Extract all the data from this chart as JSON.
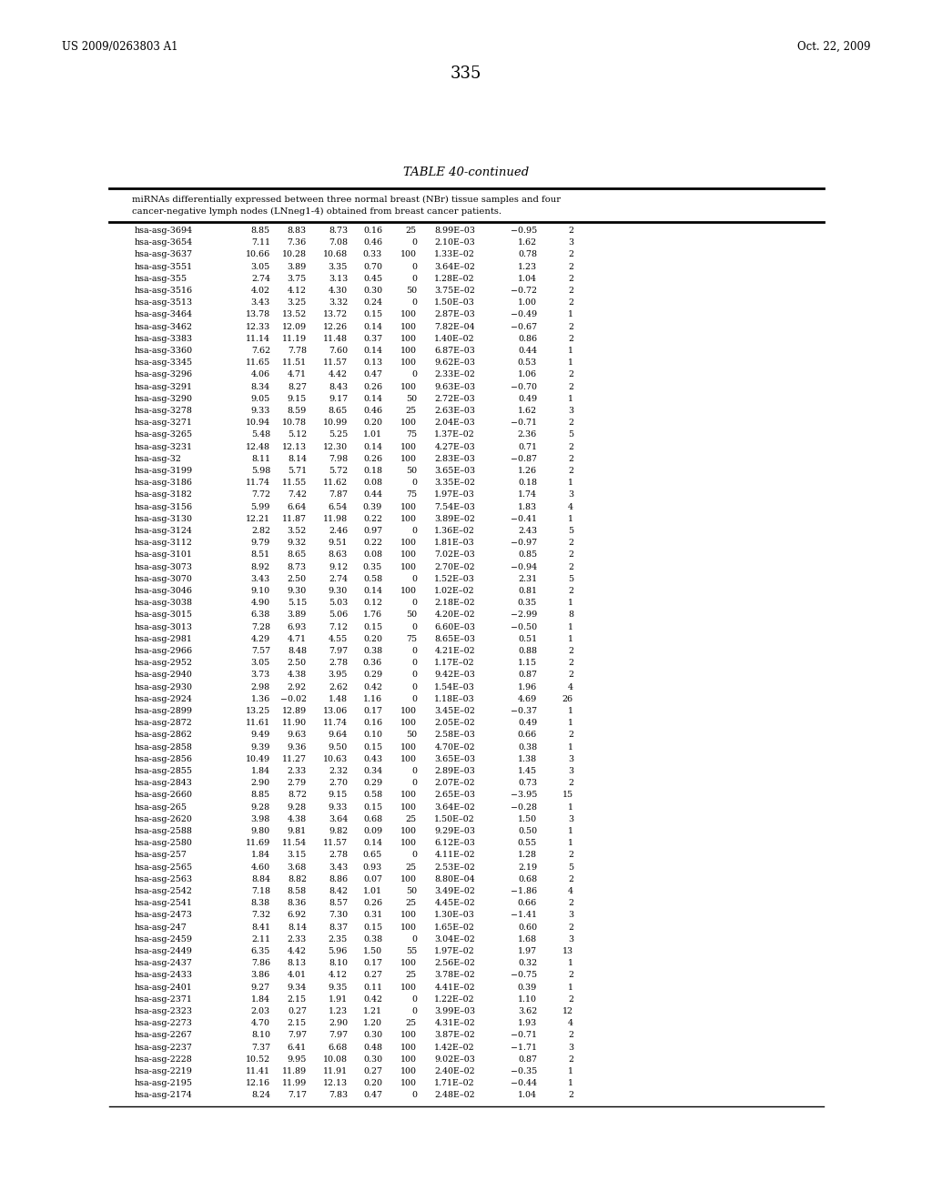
{
  "header_left": "US 2009/0263803 A1",
  "header_right": "Oct. 22, 2009",
  "page_number": "335",
  "table_title": "TABLE 40-continued",
  "table_description_line1": "miRNAs differentially expressed between three normal breast (NBr) tissue samples and four",
  "table_description_line2": "cancer-negative lymph nodes (LNneg1-4) obtained from breast cancer patients.",
  "rows": [
    [
      "hsa-asg-3694",
      "8.85",
      "8.83",
      "8.73",
      "0.16",
      "25",
      "8.99E–03",
      "−0.95",
      "2"
    ],
    [
      "hsa-asg-3654",
      "7.11",
      "7.36",
      "7.08",
      "0.46",
      "0",
      "2.10E–03",
      "1.62",
      "3"
    ],
    [
      "hsa-asg-3637",
      "10.66",
      "10.28",
      "10.68",
      "0.33",
      "100",
      "1.33E–02",
      "0.78",
      "2"
    ],
    [
      "hsa-asg-3551",
      "3.05",
      "3.89",
      "3.35",
      "0.70",
      "0",
      "3.64E–02",
      "1.23",
      "2"
    ],
    [
      "hsa-asg-355",
      "2.74",
      "3.75",
      "3.13",
      "0.45",
      "0",
      "1.28E–02",
      "1.04",
      "2"
    ],
    [
      "hsa-asg-3516",
      "4.02",
      "4.12",
      "4.30",
      "0.30",
      "50",
      "3.75E–02",
      "−0.72",
      "2"
    ],
    [
      "hsa-asg-3513",
      "3.43",
      "3.25",
      "3.32",
      "0.24",
      "0",
      "1.50E–03",
      "1.00",
      "2"
    ],
    [
      "hsa-asg-3464",
      "13.78",
      "13.52",
      "13.72",
      "0.15",
      "100",
      "2.87E–03",
      "−0.49",
      "1"
    ],
    [
      "hsa-asg-3462",
      "12.33",
      "12.09",
      "12.26",
      "0.14",
      "100",
      "7.82E–04",
      "−0.67",
      "2"
    ],
    [
      "hsa-asg-3383",
      "11.14",
      "11.19",
      "11.48",
      "0.37",
      "100",
      "1.40E–02",
      "0.86",
      "2"
    ],
    [
      "hsa-asg-3360",
      "7.62",
      "7.78",
      "7.60",
      "0.14",
      "100",
      "6.87E–03",
      "0.44",
      "1"
    ],
    [
      "hsa-asg-3345",
      "11.65",
      "11.51",
      "11.57",
      "0.13",
      "100",
      "9.62E–03",
      "0.53",
      "1"
    ],
    [
      "hsa-asg-3296",
      "4.06",
      "4.71",
      "4.42",
      "0.47",
      "0",
      "2.33E–02",
      "1.06",
      "2"
    ],
    [
      "hsa-asg-3291",
      "8.34",
      "8.27",
      "8.43",
      "0.26",
      "100",
      "9.63E–03",
      "−0.70",
      "2"
    ],
    [
      "hsa-asg-3290",
      "9.05",
      "9.15",
      "9.17",
      "0.14",
      "50",
      "2.72E–03",
      "0.49",
      "1"
    ],
    [
      "hsa-asg-3278",
      "9.33",
      "8.59",
      "8.65",
      "0.46",
      "25",
      "2.63E–03",
      "1.62",
      "3"
    ],
    [
      "hsa-asg-3271",
      "10.94",
      "10.78",
      "10.99",
      "0.20",
      "100",
      "2.04E–03",
      "−0.71",
      "2"
    ],
    [
      "hsa-asg-3265",
      "5.48",
      "5.12",
      "5.25",
      "1.01",
      "75",
      "1.37E–02",
      "2.36",
      "5"
    ],
    [
      "hsa-asg-3231",
      "12.48",
      "12.13",
      "12.30",
      "0.14",
      "100",
      "4.27E–03",
      "0.71",
      "2"
    ],
    [
      "hsa-asg-32",
      "8.11",
      "8.14",
      "7.98",
      "0.26",
      "100",
      "2.83E–03",
      "−0.87",
      "2"
    ],
    [
      "hsa-asg-3199",
      "5.98",
      "5.71",
      "5.72",
      "0.18",
      "50",
      "3.65E–03",
      "1.26",
      "2"
    ],
    [
      "hsa-asg-3186",
      "11.74",
      "11.55",
      "11.62",
      "0.08",
      "0",
      "3.35E–02",
      "0.18",
      "1"
    ],
    [
      "hsa-asg-3182",
      "7.72",
      "7.42",
      "7.87",
      "0.44",
      "75",
      "1.97E–03",
      "1.74",
      "3"
    ],
    [
      "hsa-asg-3156",
      "5.99",
      "6.64",
      "6.54",
      "0.39",
      "100",
      "7.54E–03",
      "1.83",
      "4"
    ],
    [
      "hsa-asg-3130",
      "12.21",
      "11.87",
      "11.98",
      "0.22",
      "100",
      "3.89E–02",
      "−0.41",
      "1"
    ],
    [
      "hsa-asg-3124",
      "2.82",
      "3.52",
      "2.46",
      "0.97",
      "0",
      "1.36E–02",
      "2.43",
      "5"
    ],
    [
      "hsa-asg-3112",
      "9.79",
      "9.32",
      "9.51",
      "0.22",
      "100",
      "1.81E–03",
      "−0.97",
      "2"
    ],
    [
      "hsa-asg-3101",
      "8.51",
      "8.65",
      "8.63",
      "0.08",
      "100",
      "7.02E–03",
      "0.85",
      "2"
    ],
    [
      "hsa-asg-3073",
      "8.92",
      "8.73",
      "9.12",
      "0.35",
      "100",
      "2.70E–02",
      "−0.94",
      "2"
    ],
    [
      "hsa-asg-3070",
      "3.43",
      "2.50",
      "2.74",
      "0.58",
      "0",
      "1.52E–03",
      "2.31",
      "5"
    ],
    [
      "hsa-asg-3046",
      "9.10",
      "9.30",
      "9.30",
      "0.14",
      "100",
      "1.02E–02",
      "0.81",
      "2"
    ],
    [
      "hsa-asg-3038",
      "4.90",
      "5.15",
      "5.03",
      "0.12",
      "0",
      "2.18E–02",
      "0.35",
      "1"
    ],
    [
      "hsa-asg-3015",
      "6.38",
      "3.89",
      "5.06",
      "1.76",
      "50",
      "4.20E–02",
      "−2.99",
      "8"
    ],
    [
      "hsa-asg-3013",
      "7.28",
      "6.93",
      "7.12",
      "0.15",
      "0",
      "6.60E–03",
      "−0.50",
      "1"
    ],
    [
      "hsa-asg-2981",
      "4.29",
      "4.71",
      "4.55",
      "0.20",
      "75",
      "8.65E–03",
      "0.51",
      "1"
    ],
    [
      "hsa-asg-2966",
      "7.57",
      "8.48",
      "7.97",
      "0.38",
      "0",
      "4.21E–02",
      "0.88",
      "2"
    ],
    [
      "hsa-asg-2952",
      "3.05",
      "2.50",
      "2.78",
      "0.36",
      "0",
      "1.17E–02",
      "1.15",
      "2"
    ],
    [
      "hsa-asg-2940",
      "3.73",
      "4.38",
      "3.95",
      "0.29",
      "0",
      "9.42E–03",
      "0.87",
      "2"
    ],
    [
      "hsa-asg-2930",
      "2.98",
      "2.92",
      "2.62",
      "0.42",
      "0",
      "1.54E–03",
      "1.96",
      "4"
    ],
    [
      "hsa-asg-2924",
      "1.36",
      "−0.02",
      "1.48",
      "1.16",
      "0",
      "1.18E–03",
      "4.69",
      "26"
    ],
    [
      "hsa-asg-2899",
      "13.25",
      "12.89",
      "13.06",
      "0.17",
      "100",
      "3.45E–02",
      "−0.37",
      "1"
    ],
    [
      "hsa-asg-2872",
      "11.61",
      "11.90",
      "11.74",
      "0.16",
      "100",
      "2.05E–02",
      "0.49",
      "1"
    ],
    [
      "hsa-asg-2862",
      "9.49",
      "9.63",
      "9.64",
      "0.10",
      "50",
      "2.58E–03",
      "0.66",
      "2"
    ],
    [
      "hsa-asg-2858",
      "9.39",
      "9.36",
      "9.50",
      "0.15",
      "100",
      "4.70E–02",
      "0.38",
      "1"
    ],
    [
      "hsa-asg-2856",
      "10.49",
      "11.27",
      "10.63",
      "0.43",
      "100",
      "3.65E–03",
      "1.38",
      "3"
    ],
    [
      "hsa-asg-2855",
      "1.84",
      "2.33",
      "2.32",
      "0.34",
      "0",
      "2.89E–03",
      "1.45",
      "3"
    ],
    [
      "hsa-asg-2843",
      "2.90",
      "2.79",
      "2.70",
      "0.29",
      "0",
      "2.07E–02",
      "0.73",
      "2"
    ],
    [
      "hsa-asg-2660",
      "8.85",
      "8.72",
      "9.15",
      "0.58",
      "100",
      "2.65E–03",
      "−3.95",
      "15"
    ],
    [
      "hsa-asg-265",
      "9.28",
      "9.28",
      "9.33",
      "0.15",
      "100",
      "3.64E–02",
      "−0.28",
      "1"
    ],
    [
      "hsa-asg-2620",
      "3.98",
      "4.38",
      "3.64",
      "0.68",
      "25",
      "1.50E–02",
      "1.50",
      "3"
    ],
    [
      "hsa-asg-2588",
      "9.80",
      "9.81",
      "9.82",
      "0.09",
      "100",
      "9.29E–03",
      "0.50",
      "1"
    ],
    [
      "hsa-asg-2580",
      "11.69",
      "11.54",
      "11.57",
      "0.14",
      "100",
      "6.12E–03",
      "0.55",
      "1"
    ],
    [
      "hsa-asg-257",
      "1.84",
      "3.15",
      "2.78",
      "0.65",
      "0",
      "4.11E–02",
      "1.28",
      "2"
    ],
    [
      "hsa-asg-2565",
      "4.60",
      "3.68",
      "3.43",
      "0.93",
      "25",
      "2.53E–02",
      "2.19",
      "5"
    ],
    [
      "hsa-asg-2563",
      "8.84",
      "8.82",
      "8.86",
      "0.07",
      "100",
      "8.80E–04",
      "0.68",
      "2"
    ],
    [
      "hsa-asg-2542",
      "7.18",
      "8.58",
      "8.42",
      "1.01",
      "50",
      "3.49E–02",
      "−1.86",
      "4"
    ],
    [
      "hsa-asg-2541",
      "8.38",
      "8.36",
      "8.57",
      "0.26",
      "25",
      "4.45E–02",
      "0.66",
      "2"
    ],
    [
      "hsa-asg-2473",
      "7.32",
      "6.92",
      "7.30",
      "0.31",
      "100",
      "1.30E–03",
      "−1.41",
      "3"
    ],
    [
      "hsa-asg-247",
      "8.41",
      "8.14",
      "8.37",
      "0.15",
      "100",
      "1.65E–02",
      "0.60",
      "2"
    ],
    [
      "hsa-asg-2459",
      "2.11",
      "2.33",
      "2.35",
      "0.38",
      "0",
      "3.04E–02",
      "1.68",
      "3"
    ],
    [
      "hsa-asg-2449",
      "6.35",
      "4.42",
      "5.96",
      "1.50",
      "55",
      "1.97E–02",
      "1.97",
      "13"
    ],
    [
      "hsa-asg-2437",
      "7.86",
      "8.13",
      "8.10",
      "0.17",
      "100",
      "2.56E–02",
      "0.32",
      "1"
    ],
    [
      "hsa-asg-2433",
      "3.86",
      "4.01",
      "4.12",
      "0.27",
      "25",
      "3.78E–02",
      "−0.75",
      "2"
    ],
    [
      "hsa-asg-2401",
      "9.27",
      "9.34",
      "9.35",
      "0.11",
      "100",
      "4.41E–02",
      "0.39",
      "1"
    ],
    [
      "hsa-asg-2371",
      "1.84",
      "2.15",
      "1.91",
      "0.42",
      "0",
      "1.22E–02",
      "1.10",
      "2"
    ],
    [
      "hsa-asg-2323",
      "2.03",
      "0.27",
      "1.23",
      "1.21",
      "0",
      "3.99E–03",
      "3.62",
      "12"
    ],
    [
      "hsa-asg-2273",
      "4.70",
      "2.15",
      "2.90",
      "1.20",
      "25",
      "4.31E–02",
      "1.93",
      "4"
    ],
    [
      "hsa-asg-2267",
      "8.10",
      "7.97",
      "7.97",
      "0.30",
      "100",
      "3.87E–02",
      "−0.71",
      "2"
    ],
    [
      "hsa-asg-2237",
      "7.37",
      "6.41",
      "6.68",
      "0.48",
      "100",
      "1.42E–02",
      "−1.71",
      "3"
    ],
    [
      "hsa-asg-2228",
      "10.52",
      "9.95",
      "10.08",
      "0.30",
      "100",
      "9.02E–03",
      "0.87",
      "2"
    ],
    [
      "hsa-asg-2219",
      "11.41",
      "11.89",
      "11.91",
      "0.27",
      "100",
      "2.40E–02",
      "−0.35",
      "1"
    ],
    [
      "hsa-asg-2195",
      "12.16",
      "11.99",
      "12.13",
      "0.20",
      "100",
      "1.71E–02",
      "−0.44",
      "1"
    ],
    [
      "hsa-asg-2174",
      "8.24",
      "7.17",
      "7.83",
      "0.47",
      "0",
      "2.48E–02",
      "1.04",
      "2"
    ]
  ],
  "bg_color": "#ffffff",
  "text_color": "#000000",
  "line_color": "#000000",
  "header_fontsize": 8.5,
  "table_fontsize": 6.8,
  "title_fontsize": 9.5,
  "page_num_fontsize": 13,
  "desc_fontsize": 7.2
}
